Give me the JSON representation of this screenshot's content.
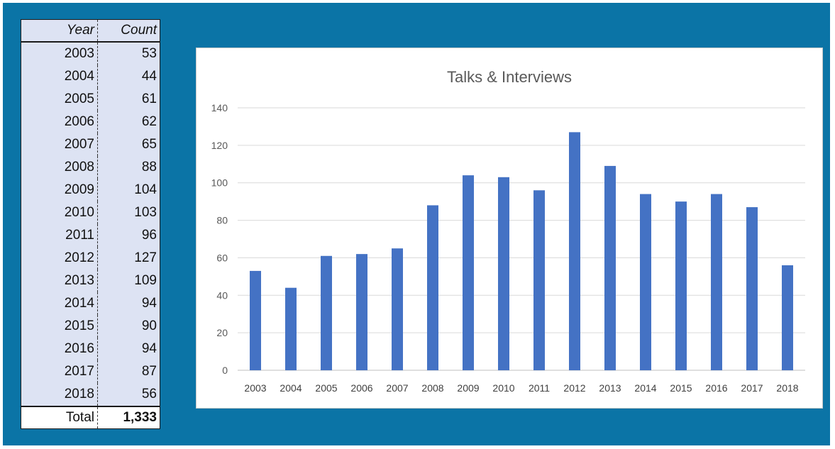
{
  "table": {
    "header_year": "Year",
    "header_count": "Count",
    "rows": [
      {
        "year": "2003",
        "count": "53"
      },
      {
        "year": "2004",
        "count": "44"
      },
      {
        "year": "2005",
        "count": "61"
      },
      {
        "year": "2006",
        "count": "62"
      },
      {
        "year": "2007",
        "count": "65"
      },
      {
        "year": "2008",
        "count": "88"
      },
      {
        "year": "2009",
        "count": "104"
      },
      {
        "year": "2010",
        "count": "103"
      },
      {
        "year": "2011",
        "count": "96"
      },
      {
        "year": "2012",
        "count": "127"
      },
      {
        "year": "2013",
        "count": "109"
      },
      {
        "year": "2014",
        "count": "94"
      },
      {
        "year": "2015",
        "count": "90"
      },
      {
        "year": "2016",
        "count": "94"
      },
      {
        "year": "2017",
        "count": "87"
      },
      {
        "year": "2018",
        "count": "56"
      }
    ],
    "total_label": "Total",
    "total_value": "1,333"
  },
  "colors": {
    "background": "#0b74a6",
    "bar": "#4472c4",
    "table_fill": "#dde3f3"
  },
  "chart_data": {
    "type": "bar",
    "title": "Talks & Interviews",
    "xlabel": "",
    "ylabel": "",
    "categories": [
      "2003",
      "2004",
      "2005",
      "2006",
      "2007",
      "2008",
      "2009",
      "2010",
      "2011",
      "2012",
      "2013",
      "2014",
      "2015",
      "2016",
      "2017",
      "2018"
    ],
    "values": [
      53,
      44,
      61,
      62,
      65,
      88,
      104,
      103,
      96,
      127,
      109,
      94,
      90,
      94,
      87,
      56
    ],
    "ylim": [
      0,
      140
    ],
    "yticks": [
      0,
      20,
      40,
      60,
      80,
      100,
      120,
      140
    ],
    "grid": true,
    "legend": "none"
  }
}
